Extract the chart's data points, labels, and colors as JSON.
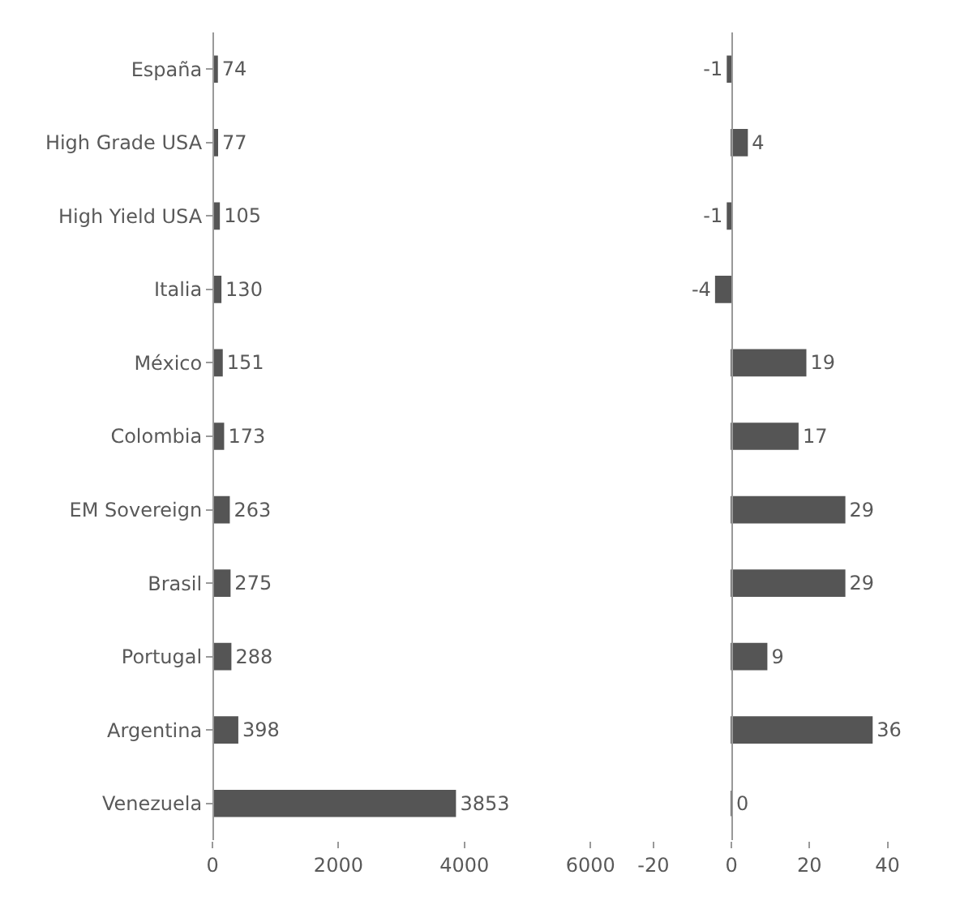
{
  "chart_data": [
    {
      "type": "bar",
      "orientation": "horizontal",
      "categories": [
        "España",
        "High Grade USA",
        "High Yield USA",
        "Italia",
        "México",
        "Colombia",
        "EM Sovereign",
        "Brasil",
        "Portugal",
        "Argentina",
        "Venezuela"
      ],
      "values": [
        74,
        77,
        105,
        130,
        151,
        173,
        263,
        275,
        288,
        398,
        3853
      ],
      "color": "#555555",
      "data_labels": true,
      "xlim": [
        0,
        6000
      ],
      "xticks": [
        0,
        2000,
        4000,
        6000
      ],
      "legend": false
    },
    {
      "type": "bar",
      "orientation": "horizontal",
      "categories": [
        null,
        null,
        null,
        null,
        null,
        null,
        null,
        null,
        null,
        null,
        null
      ],
      "values": [
        -1,
        4,
        -1,
        -4,
        19,
        17,
        29,
        29,
        9,
        36,
        0
      ],
      "color": "#555555",
      "data_labels": true,
      "xlim": [
        -20,
        40
      ],
      "xticks": [
        -20,
        0,
        20,
        40
      ],
      "legend": false,
      "tick_labels": "x"
    }
  ]
}
